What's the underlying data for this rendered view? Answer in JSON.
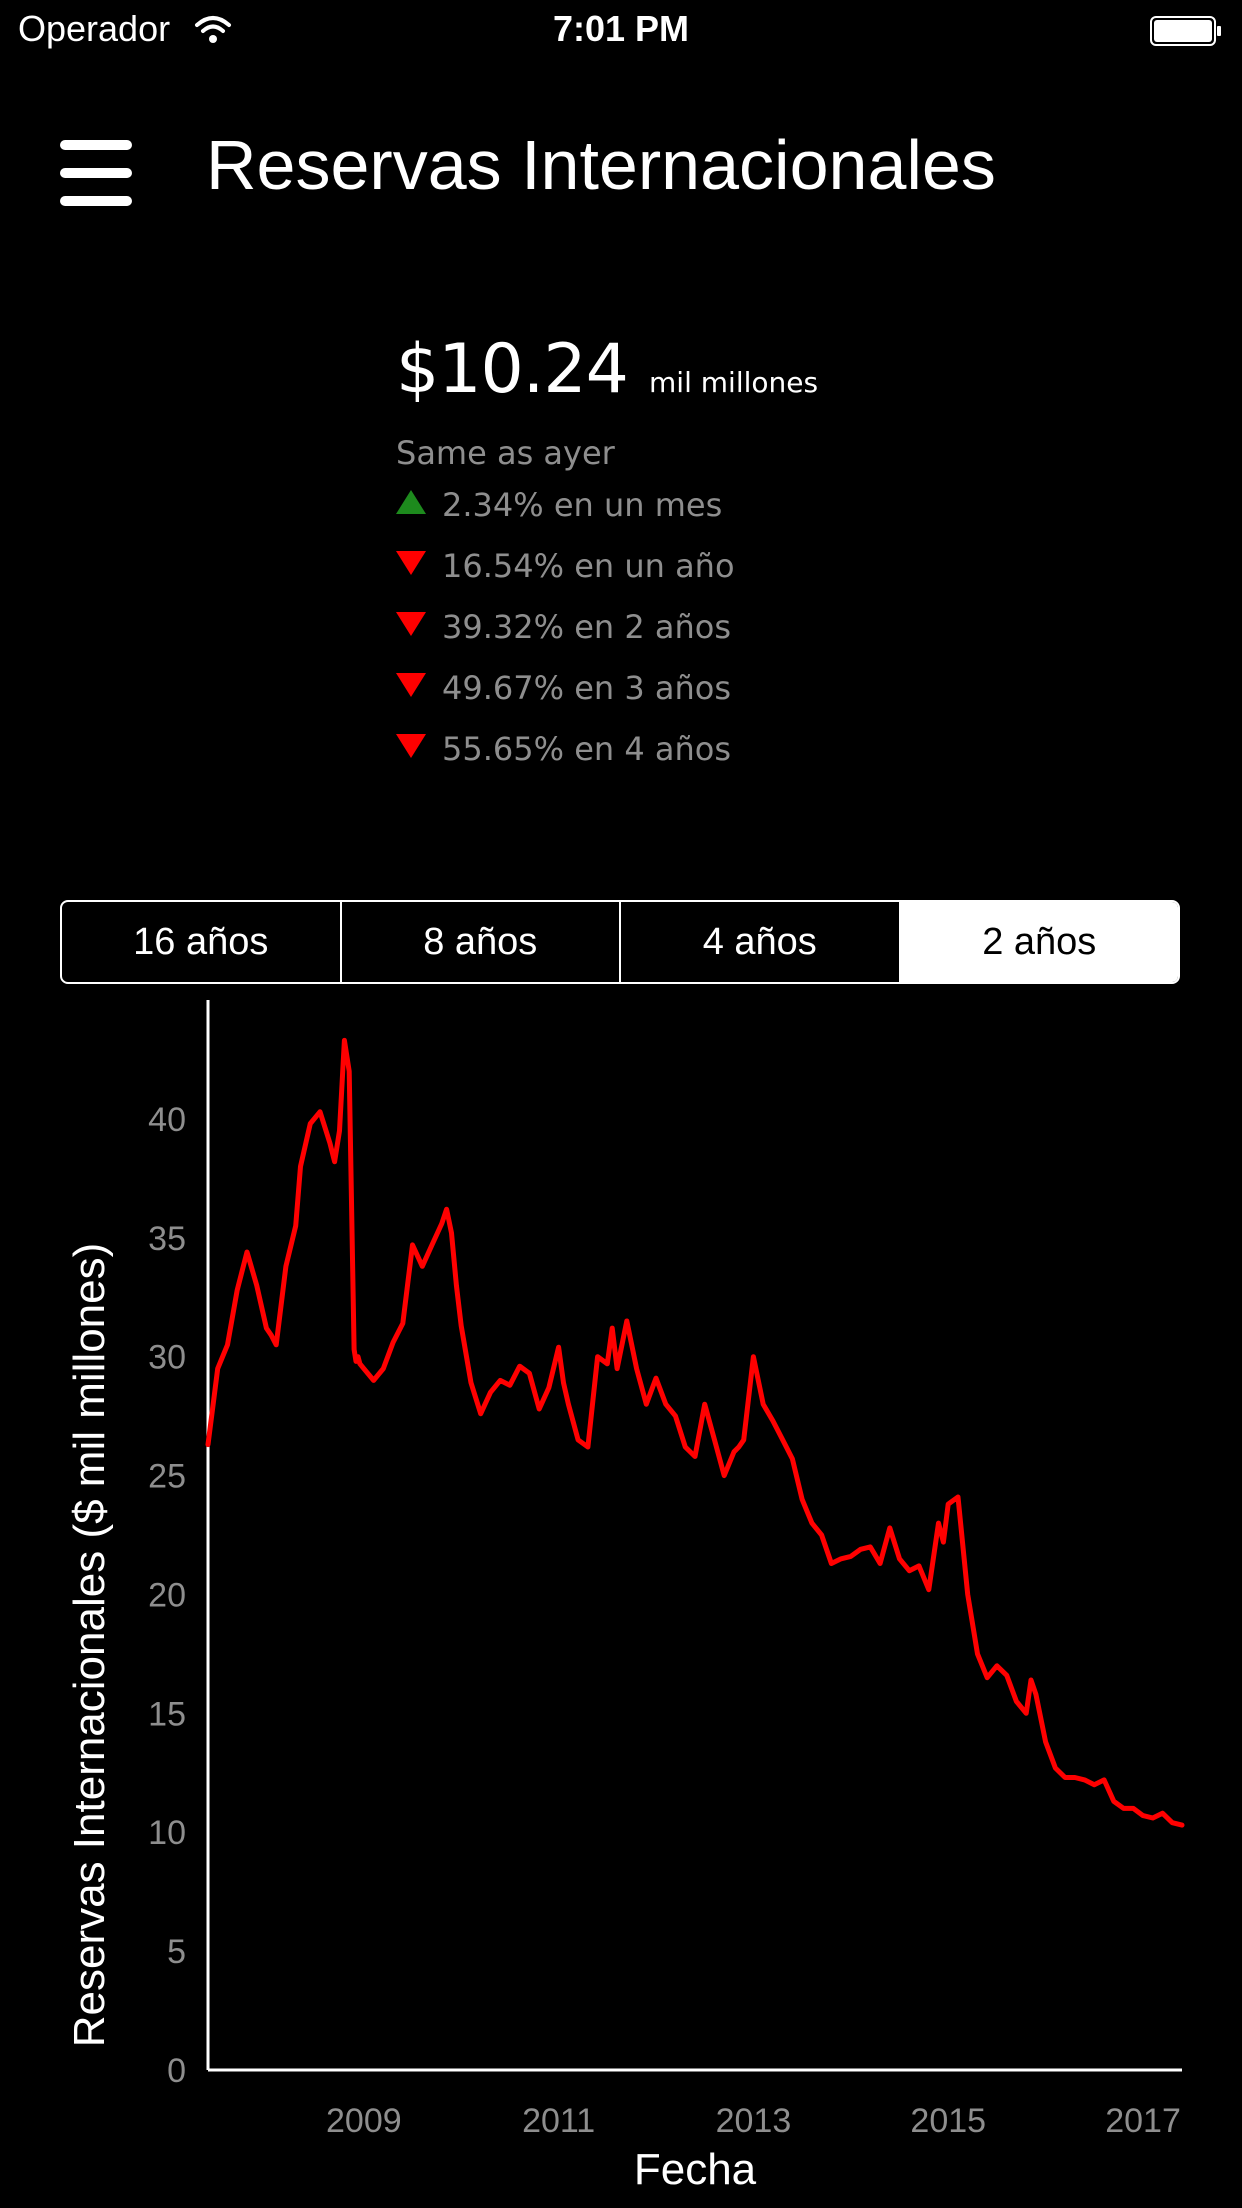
{
  "status_bar": {
    "carrier": "Operador",
    "time": "7:01 PM",
    "icons": [
      "wifi-icon",
      "battery-icon"
    ]
  },
  "header": {
    "menu_icon": "hamburger-menu-icon",
    "title": "Reservas Internacionales"
  },
  "summary": {
    "value": "$10.24",
    "unit": "mil millones",
    "compare": "Same as ayer",
    "changes": [
      {
        "direction": "up",
        "text": "2.34% en un mes"
      },
      {
        "direction": "down",
        "text": "16.54% en un año"
      },
      {
        "direction": "down",
        "text": "39.32% en 2 años"
      },
      {
        "direction": "down",
        "text": "49.67% en 3 años"
      },
      {
        "direction": "down",
        "text": "55.65% en 4 años"
      }
    ],
    "colors": {
      "up": "#1d8a1d",
      "down": "#ff0000"
    }
  },
  "range_selector": {
    "options": [
      "16 años",
      "8 años",
      "4 años",
      "2 años"
    ],
    "selected": "2 años"
  },
  "chart_data": {
    "type": "line",
    "xlabel": "Fecha",
    "ylabel": "Reservas Internacionales ($ mil millones)",
    "ylim": [
      0,
      45
    ],
    "xlim": [
      2007.4,
      2017.4
    ],
    "yticks": [
      0,
      5,
      10,
      15,
      20,
      25,
      30,
      35,
      40
    ],
    "xticks": [
      2009,
      2011,
      2013,
      2015,
      2017
    ],
    "line_color": "#ff0000",
    "grid": false,
    "series": [
      {
        "x": [
          2007.4,
          2007.5,
          2007.6,
          2007.7,
          2007.8,
          2007.9,
          2008.0,
          2008.05,
          2008.1,
          2008.2,
          2008.3,
          2008.35,
          2008.45,
          2008.55,
          2008.65,
          2008.7,
          2008.75,
          2008.8,
          2008.85,
          2008.9,
          2008.92,
          2008.94,
          2008.96,
          2009.0,
          2009.1,
          2009.2,
          2009.3,
          2009.4,
          2009.5,
          2009.6,
          2009.7,
          2009.8,
          2009.85,
          2009.9,
          2009.95,
          2010.0,
          2010.1,
          2010.2,
          2010.3,
          2010.4,
          2010.5,
          2010.6,
          2010.7,
          2010.8,
          2010.9,
          2011.0,
          2011.05,
          2011.1,
          2011.2,
          2011.3,
          2011.4,
          2011.5,
          2011.55,
          2011.6,
          2011.7,
          2011.8,
          2011.9,
          2012.0,
          2012.1,
          2012.2,
          2012.3,
          2012.4,
          2012.5,
          2012.6,
          2012.7,
          2012.8,
          2012.85,
          2012.9,
          2013.0,
          2013.1,
          2013.2,
          2013.3,
          2013.4,
          2013.5,
          2013.6,
          2013.7,
          2013.8,
          2013.9,
          2014.0,
          2014.1,
          2014.2,
          2014.3,
          2014.4,
          2014.5,
          2014.6,
          2014.7,
          2014.8,
          2014.9,
          2014.95,
          2015.0,
          2015.1,
          2015.2,
          2015.3,
          2015.4,
          2015.5,
          2015.6,
          2015.7,
          2015.8,
          2015.85,
          2015.9,
          2016.0,
          2016.1,
          2016.2,
          2016.3,
          2016.4,
          2016.5,
          2016.6,
          2016.7,
          2016.8,
          2016.9,
          2017.0,
          2017.1,
          2017.2,
          2017.3,
          2017.4
        ],
        "y": [
          26.3,
          29.5,
          30.5,
          32.8,
          34.4,
          33.0,
          31.2,
          30.9,
          30.5,
          33.8,
          35.5,
          38.0,
          39.8,
          40.3,
          39.0,
          38.2,
          39.5,
          43.3,
          42.0,
          30.3,
          29.8,
          30.0,
          29.7,
          29.5,
          29.0,
          29.5,
          30.6,
          31.4,
          34.7,
          33.8,
          34.7,
          35.6,
          36.2,
          35.2,
          33.0,
          31.3,
          28.9,
          27.6,
          28.5,
          29.0,
          28.8,
          29.6,
          29.3,
          27.8,
          28.7,
          30.4,
          28.9,
          28.0,
          26.5,
          26.2,
          30.0,
          29.7,
          31.2,
          29.5,
          31.5,
          29.5,
          28.0,
          29.1,
          28.0,
          27.5,
          26.2,
          25.8,
          28.0,
          26.5,
          25.0,
          26.0,
          26.2,
          26.5,
          30.0,
          28.0,
          27.3,
          26.5,
          25.7,
          24.0,
          23.0,
          22.5,
          21.3,
          21.5,
          21.6,
          21.9,
          22.0,
          21.3,
          22.8,
          21.5,
          21.0,
          21.2,
          20.2,
          23.0,
          22.2,
          23.8,
          24.1,
          20.0,
          17.5,
          16.5,
          17.0,
          16.6,
          15.5,
          15.0,
          16.4,
          15.8,
          13.8,
          12.7,
          12.3,
          12.3,
          12.2,
          12.0,
          12.2,
          11.3,
          11.0,
          11.0,
          10.7,
          10.6,
          10.8,
          10.4,
          10.3
        ]
      }
    ]
  }
}
